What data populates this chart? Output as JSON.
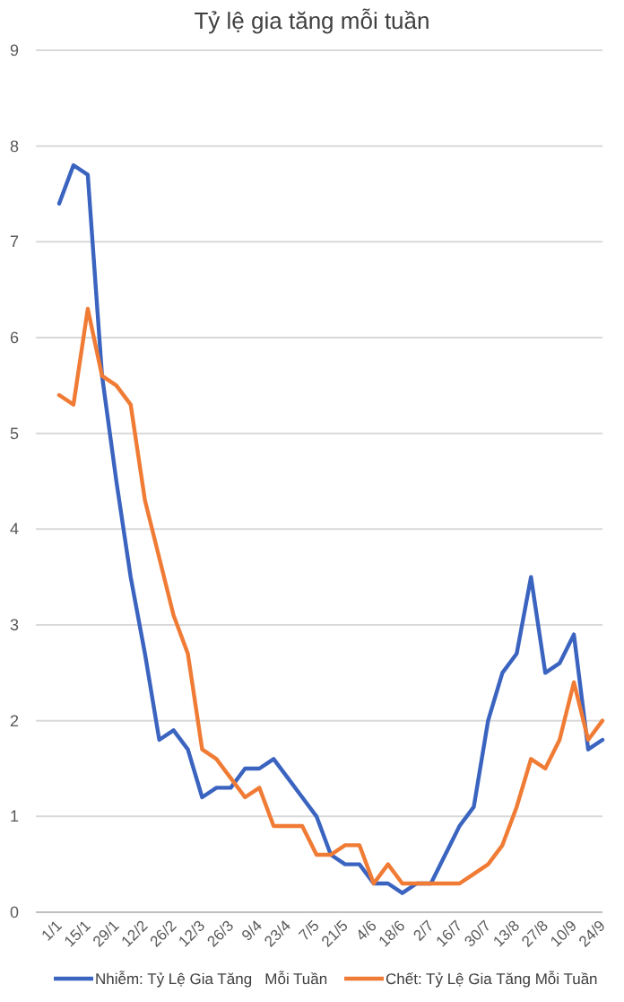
{
  "chart_data": {
    "type": "line",
    "title": "Tỷ lệ gia tăng mỗi tuần",
    "categories": [
      "1/1",
      null,
      "15/1",
      null,
      "29/1",
      null,
      "12/2",
      null,
      "26/2",
      null,
      "12/3",
      null,
      "26/3",
      null,
      "9/4",
      null,
      "23/4",
      null,
      "7/5",
      null,
      "21/5",
      null,
      "4/6",
      null,
      "18/6",
      null,
      "2/7",
      null,
      "16/7",
      null,
      "30/7",
      null,
      "13/8",
      null,
      "27/8",
      null,
      "10/9",
      null,
      "24/9"
    ],
    "series": [
      {
        "name": "Nhiễm: Tỷ Lệ Gia Tăng   Mỗi Tuần",
        "color": "#3a64c0",
        "values": [
          7.4,
          7.8,
          7.7,
          5.6,
          4.5,
          3.5,
          2.7,
          1.8,
          1.9,
          1.7,
          1.2,
          1.3,
          1.3,
          1.5,
          1.5,
          1.6,
          1.4,
          1.2,
          1.0,
          0.6,
          0.5,
          0.5,
          0.3,
          0.3,
          0.2,
          0.3,
          0.3,
          0.6,
          0.9,
          1.1,
          2.0,
          2.5,
          2.7,
          3.5,
          2.5,
          2.6,
          2.9,
          1.7,
          1.8
        ]
      },
      {
        "name": "Chết: Tỷ Lệ Gia Tăng Mỗi Tuần",
        "color": "#f07b35",
        "values": [
          5.4,
          5.3,
          6.3,
          5.6,
          5.5,
          5.3,
          4.3,
          3.7,
          3.1,
          2.7,
          1.7,
          1.6,
          1.4,
          1.2,
          1.3,
          0.9,
          0.9,
          0.9,
          0.6,
          0.6,
          0.7,
          0.7,
          0.3,
          0.5,
          0.3,
          0.3,
          0.3,
          0.3,
          0.3,
          0.4,
          0.5,
          0.7,
          1.1,
          1.6,
          1.5,
          1.8,
          2.4,
          1.8,
          2.0
        ]
      }
    ],
    "ylim": [
      0,
      9
    ],
    "yticks": [
      0,
      1,
      2,
      3,
      4,
      5,
      6,
      7,
      8,
      9
    ],
    "grid": "y",
    "legend": "bottom",
    "marker": "none",
    "line_style": "solid"
  }
}
